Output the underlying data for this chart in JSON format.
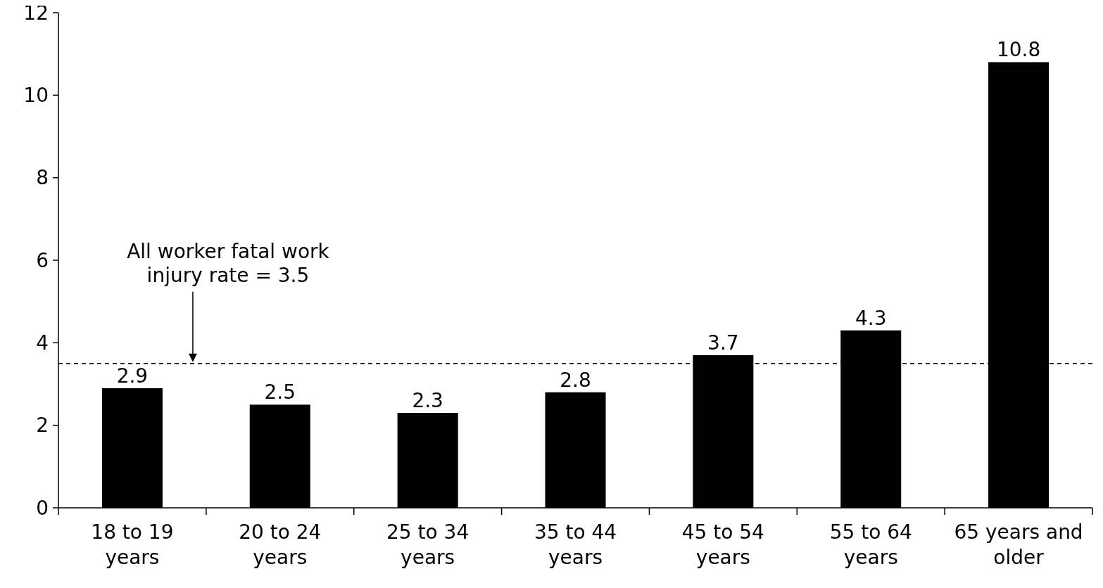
{
  "chart_data": {
    "type": "bar",
    "categories": [
      "18 to 19 years",
      "20 to 24 years",
      "25 to 34 years",
      "35 to 44 years",
      "45 to 54 years",
      "55 to 64 years",
      "65 years and older"
    ],
    "values": [
      2.9,
      2.5,
      2.3,
      2.8,
      3.7,
      4.3,
      10.8
    ],
    "color": "#000000",
    "ylim": [
      0,
      12
    ],
    "yticks": [
      0,
      2,
      4,
      6,
      8,
      10,
      12
    ],
    "grid": false,
    "data_labels": true,
    "ref_lines": [
      {
        "axis": "y",
        "value": 3.5,
        "label": "All worker fatal work injury rate = 3.5",
        "color": "#000000",
        "line_style": "dashed"
      }
    ]
  }
}
